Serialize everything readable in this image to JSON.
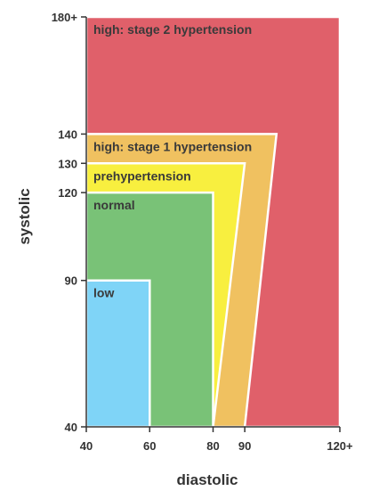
{
  "chart_data": {
    "type": "area",
    "xlabel": "diastolic",
    "ylabel": "systolic",
    "x_ticks": [
      {
        "value": 40,
        "label": "40"
      },
      {
        "value": 60,
        "label": "60"
      },
      {
        "value": 80,
        "label": "80"
      },
      {
        "value": 90,
        "label": "90"
      },
      {
        "value": 120,
        "label": "120+"
      }
    ],
    "y_ticks": [
      {
        "value": 40,
        "label": "40"
      },
      {
        "value": 90,
        "label": "90"
      },
      {
        "value": 120,
        "label": "120"
      },
      {
        "value": 130,
        "label": "130"
      },
      {
        "value": 140,
        "label": "140"
      },
      {
        "value": 180,
        "label": "180+"
      }
    ],
    "xlim": [
      40,
      120
    ],
    "ylim": [
      40,
      180
    ],
    "zones": [
      {
        "name": "high: stage 2 hypertension",
        "color": "#e0606a",
        "polygon": [
          [
            40,
            40
          ],
          [
            120,
            40
          ],
          [
            120,
            180
          ],
          [
            40,
            180
          ]
        ]
      },
      {
        "name": "high: stage 1 hypertension",
        "color": "#f0c160",
        "polygon": [
          [
            40,
            40
          ],
          [
            90,
            40
          ],
          [
            100,
            140
          ],
          [
            40,
            140
          ]
        ]
      },
      {
        "name": "prehypertension",
        "color": "#f8ef3f",
        "polygon": [
          [
            40,
            40
          ],
          [
            80,
            40
          ],
          [
            90,
            130
          ],
          [
            40,
            130
          ]
        ]
      },
      {
        "name": "normal",
        "color": "#79c277",
        "polygon": [
          [
            40,
            40
          ],
          [
            80,
            40
          ],
          [
            80,
            120
          ],
          [
            40,
            120
          ]
        ]
      },
      {
        "name": "low",
        "color": "#7fd4f7",
        "polygon": [
          [
            40,
            40
          ],
          [
            60,
            40
          ],
          [
            60,
            90
          ],
          [
            40,
            90
          ]
        ]
      }
    ]
  }
}
